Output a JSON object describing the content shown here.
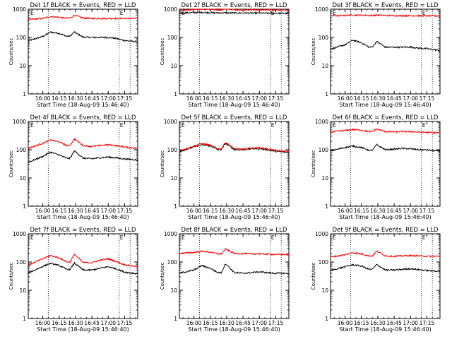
{
  "chart_data": [
    {
      "type": "line",
      "title": "Det 1f BLACK = Events, RED = LLD",
      "xlabel": "Start Time (18-Aug-09 15:46:40)",
      "ylabel": "Counts/sec",
      "yscale": "log",
      "ylim": [
        1,
        1000
      ],
      "y_ticks": [
        "1",
        "10",
        "100",
        "1000"
      ],
      "x_ticks": [
        "16:00",
        "16:15",
        "16:30",
        "16:45",
        "17:00",
        "17:15"
      ],
      "markers": [
        "E",
        "E"
      ],
      "ref_lines_at": [
        "16:05",
        "17:10",
        "17:20"
      ],
      "x_unit": "HH:MM",
      "x": [
        "15:46",
        "16:00",
        "16:07",
        "16:15",
        "16:22",
        "16:25",
        "16:29",
        "16:37",
        "16:45",
        "16:52",
        "17:00",
        "17:07",
        "17:15",
        "17:23",
        "17:28"
      ],
      "series": [
        {
          "color": "#000000",
          "values": [
            75,
            108,
            155,
            140,
            110,
            112,
            155,
            102,
            100,
            100,
            100,
            92,
            78,
            72,
            70
          ]
        },
        {
          "color": "#ff0000",
          "values": [
            430,
            470,
            545,
            520,
            480,
            480,
            610,
            485,
            470,
            470,
            470,
            470,
            470,
            470,
            470
          ]
        }
      ]
    },
    {
      "type": "line",
      "title": "Det 2f BLACK = Events, RED = LLD",
      "xlabel": "Start Time (18-Aug-09 15:46:40)",
      "ylabel": "Counts/sec",
      "yscale": "log",
      "ylim": [
        1,
        1000
      ],
      "y_ticks": [
        "1",
        "10",
        "100",
        "1000"
      ],
      "x_ticks": [
        "16:00",
        "16:15",
        "16:30",
        "16:45",
        "17:00",
        "17:15"
      ],
      "markers": [
        "E",
        "E"
      ],
      "ref_lines_at": [
        "16:05",
        "17:10",
        "17:20"
      ],
      "x_unit": "HH:MM",
      "x": [
        "15:46",
        "16:00",
        "16:07",
        "16:15",
        "16:22",
        "16:25",
        "16:29",
        "16:37",
        "16:45",
        "16:52",
        "17:00",
        "17:07",
        "17:15",
        "17:23",
        "17:28"
      ],
      "series": [
        {
          "color": "#000000",
          "values": [
            730,
            760,
            770,
            755,
            740,
            740,
            740,
            735,
            730,
            730,
            730,
            725,
            720,
            715,
            715
          ]
        },
        {
          "color": "#ff0000",
          "values": [
            900,
            960,
            1020,
            990,
            960,
            960,
            1050,
            960,
            950,
            950,
            950,
            945,
            940,
            935,
            930
          ]
        }
      ]
    },
    {
      "type": "line",
      "title": "Det 3f BLACK = Events, RED = LLD",
      "xlabel": "Start Time (18-Aug-09 15:46:40)",
      "ylabel": "Counts/sec",
      "yscale": "log",
      "ylim": [
        1,
        1000
      ],
      "y_ticks": [
        "1",
        "10",
        "100",
        "1000"
      ],
      "x_ticks": [
        "16:00",
        "16:15",
        "16:30",
        "16:45",
        "17:00",
        "17:15"
      ],
      "markers": [
        "E",
        "E"
      ],
      "ref_lines_at": [
        "16:05",
        "17:10",
        "17:20"
      ],
      "x_unit": "HH:MM",
      "x": [
        "15:46",
        "16:00",
        "16:07",
        "16:15",
        "16:22",
        "16:25",
        "16:29",
        "16:37",
        "16:45",
        "16:52",
        "17:00",
        "17:07",
        "17:15",
        "17:23",
        "17:28"
      ],
      "series": [
        {
          "color": "#000000",
          "values": [
            38,
            55,
            80,
            65,
            45,
            46,
            72,
            45,
            45,
            45,
            46,
            42,
            40,
            36,
            34
          ]
        },
        {
          "color": "#ff0000",
          "values": [
            580,
            600,
            620,
            610,
            600,
            600,
            620,
            600,
            595,
            590,
            590,
            585,
            580,
            580,
            575
          ]
        }
      ]
    },
    {
      "type": "line",
      "title": "Det 4f BLACK = Events, RED = LLD",
      "xlabel": "Start Time (18-Aug-09 15:46:40)",
      "ylabel": "Counts/sec",
      "yscale": "log",
      "ylim": [
        1,
        1000
      ],
      "y_ticks": [
        "1",
        "10",
        "100",
        "1000"
      ],
      "x_ticks": [
        "16:00",
        "16:15",
        "16:30",
        "16:45",
        "17:00",
        "17:15"
      ],
      "markers": [
        "E",
        "E"
      ],
      "ref_lines_at": [
        "16:05",
        "17:10",
        "17:20"
      ],
      "x_unit": "HH:MM",
      "x": [
        "15:46",
        "16:00",
        "16:07",
        "16:15",
        "16:22",
        "16:25",
        "16:29",
        "16:37",
        "16:45",
        "16:52",
        "17:00",
        "17:07",
        "17:15",
        "17:23",
        "17:28"
      ],
      "series": [
        {
          "color": "#000000",
          "values": [
            35,
            58,
            82,
            65,
            50,
            50,
            92,
            50,
            48,
            52,
            55,
            52,
            47,
            45,
            43
          ]
        },
        {
          "color": "#ff0000",
          "values": [
            110,
            170,
            220,
            190,
            140,
            145,
            240,
            140,
            130,
            140,
            150,
            140,
            125,
            115,
            110
          ]
        }
      ]
    },
    {
      "type": "line",
      "title": "Det 5f BLACK = Events, RED = LLD",
      "xlabel": "Start Time (18-Aug-09 15:46:40)",
      "ylabel": "Counts/sec",
      "yscale": "log",
      "ylim": [
        1,
        1000
      ],
      "y_ticks": [
        "1",
        "10",
        "100",
        "1000"
      ],
      "x_ticks": [
        "16:00",
        "16:15",
        "16:30",
        "16:45",
        "17:00",
        "17:15"
      ],
      "markers": [
        "E",
        "E"
      ],
      "ref_lines_at": [
        "16:05",
        "17:10",
        "17:20"
      ],
      "x_unit": "HH:MM",
      "x": [
        "15:46",
        "16:00",
        "16:07",
        "16:15",
        "16:22",
        "16:25",
        "16:29",
        "16:37",
        "16:45",
        "16:52",
        "17:00",
        "17:07",
        "17:15",
        "17:23",
        "17:28"
      ],
      "series": [
        {
          "color": "#000000",
          "values": [
            85,
            125,
            150,
            135,
            100,
            100,
            170,
            100,
            100,
            108,
            110,
            100,
            88,
            82,
            80
          ]
        },
        {
          "color": "#ff0000",
          "values": [
            90,
            135,
            165,
            145,
            108,
            108,
            185,
            108,
            105,
            115,
            118,
            108,
            95,
            88,
            85
          ]
        }
      ]
    },
    {
      "type": "line",
      "title": "Det 6f BLACK = Events, RED = LLD",
      "xlabel": "Start Time (18-Aug-09 15:46:40)",
      "ylabel": "Counts/sec",
      "yscale": "log",
      "ylim": [
        1,
        1000
      ],
      "y_ticks": [
        "1",
        "10",
        "100",
        "1000"
      ],
      "x_ticks": [
        "16:00",
        "16:15",
        "16:30",
        "16:45",
        "17:00",
        "17:15"
      ],
      "markers": [
        "E",
        "E"
      ],
      "ref_lines_at": [
        "16:05",
        "17:10",
        "17:20"
      ],
      "x_unit": "HH:MM",
      "x": [
        "15:46",
        "16:00",
        "16:07",
        "16:15",
        "16:22",
        "16:25",
        "16:29",
        "16:37",
        "16:45",
        "16:52",
        "17:00",
        "17:07",
        "17:15",
        "17:23",
        "17:28"
      ],
      "series": [
        {
          "color": "#000000",
          "values": [
            90,
            120,
            135,
            120,
            95,
            95,
            150,
            100,
            105,
            112,
            108,
            100,
            98,
            92,
            90
          ]
        },
        {
          "color": "#ff0000",
          "values": [
            420,
            480,
            520,
            490,
            440,
            440,
            540,
            440,
            430,
            440,
            440,
            420,
            410,
            400,
            390
          ]
        }
      ]
    },
    {
      "type": "line",
      "title": "Det 7f BLACK = Events, RED = LLD",
      "xlabel": "Start Time (18-Aug-09 15:46:40)",
      "ylabel": "Counts/sec",
      "yscale": "log",
      "ylim": [
        1,
        1000
      ],
      "y_ticks": [
        "1",
        "10",
        "100",
        "1000"
      ],
      "x_ticks": [
        "16:00",
        "16:15",
        "16:30",
        "16:45",
        "17:00",
        "17:15"
      ],
      "markers": [
        "E",
        "E"
      ],
      "ref_lines_at": [
        "16:05",
        "17:10",
        "17:20"
      ],
      "x_unit": "HH:MM",
      "x": [
        "15:46",
        "16:00",
        "16:07",
        "16:15",
        "16:22",
        "16:25",
        "16:29",
        "16:37",
        "16:45",
        "16:52",
        "17:00",
        "17:07",
        "17:15",
        "17:23",
        "17:28"
      ],
      "series": [
        {
          "color": "#000000",
          "values": [
            40,
            70,
            90,
            75,
            55,
            55,
            92,
            52,
            52,
            60,
            68,
            58,
            44,
            40,
            38
          ]
        },
        {
          "color": "#ff0000",
          "values": [
            75,
            130,
            170,
            140,
            100,
            100,
            190,
            95,
            95,
            115,
            130,
            105,
            80,
            72,
            70
          ]
        }
      ]
    },
    {
      "type": "line",
      "title": "Det 8f BLACK = Events, RED = LLD",
      "xlabel": "Start Time (18-Aug-09 15:46:40)",
      "ylabel": "Counts/sec",
      "yscale": "log",
      "ylim": [
        1,
        1000
      ],
      "y_ticks": [
        "1",
        "10",
        "100",
        "1000"
      ],
      "x_ticks": [
        "16:00",
        "16:15",
        "16:30",
        "16:45",
        "17:00",
        "17:15"
      ],
      "markers": [
        "E",
        "E"
      ],
      "ref_lines_at": [
        "16:05",
        "17:10",
        "17:20"
      ],
      "x_unit": "HH:MM",
      "x": [
        "15:46",
        "16:00",
        "16:07",
        "16:15",
        "16:22",
        "16:25",
        "16:29",
        "16:37",
        "16:45",
        "16:52",
        "17:00",
        "17:07",
        "17:15",
        "17:23",
        "17:28"
      ],
      "series": [
        {
          "color": "#000000",
          "values": [
            40,
            52,
            75,
            60,
            42,
            42,
            88,
            42,
            40,
            42,
            45,
            42,
            40,
            40,
            38
          ]
        },
        {
          "color": "#ff0000",
          "values": [
            200,
            220,
            240,
            225,
            195,
            195,
            290,
            200,
            200,
            195,
            195,
            190,
            185,
            185,
            180
          ]
        }
      ]
    },
    {
      "type": "line",
      "title": "Det 9f BLACK = Events, RED = LLD",
      "xlabel": "Start Time (18-Aug-09 15:46:40)",
      "ylabel": "Counts/sec",
      "yscale": "log",
      "ylim": [
        1,
        1000
      ],
      "y_ticks": [
        "1",
        "10",
        "100",
        "1000"
      ],
      "x_ticks": [
        "16:00",
        "16:15",
        "16:30",
        "16:45",
        "17:00",
        "17:15"
      ],
      "markers": [
        "E",
        "E"
      ],
      "ref_lines_at": [
        "16:05",
        "17:10",
        "17:20"
      ],
      "x_unit": "HH:MM",
      "x": [
        "15:46",
        "16:00",
        "16:07",
        "16:15",
        "16:22",
        "16:25",
        "16:29",
        "16:37",
        "16:45",
        "16:52",
        "17:00",
        "17:07",
        "17:15",
        "17:23",
        "17:28"
      ],
      "series": [
        {
          "color": "#000000",
          "values": [
            50,
            68,
            80,
            72,
            55,
            55,
            82,
            52,
            52,
            55,
            58,
            54,
            50,
            48,
            48
          ]
        },
        {
          "color": "#ff0000",
          "values": [
            150,
            180,
            215,
            195,
            165,
            165,
            245,
            165,
            160,
            165,
            170,
            165,
            160,
            160,
            158
          ]
        }
      ]
    }
  ]
}
